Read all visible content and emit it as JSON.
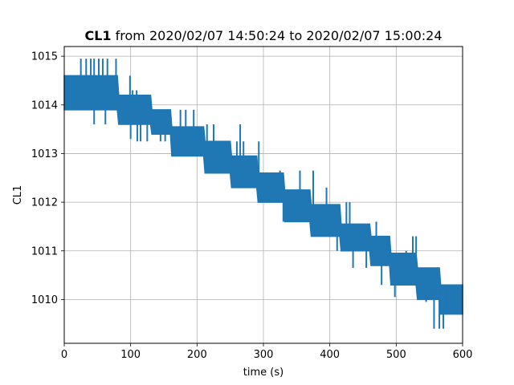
{
  "chart_data": {
    "type": "line",
    "title_bold": "CL1",
    "title_rest": " from 2020/02/07 14:50:24 to 2020/02/07 15:00:24",
    "xlabel": "time (s)",
    "ylabel": "CL1",
    "xlim": [
      0,
      600
    ],
    "ylim": [
      1009.1,
      1015.2
    ],
    "xticks": [
      0,
      100,
      200,
      300,
      400,
      500,
      600
    ],
    "yticks": [
      1010,
      1011,
      1012,
      1013,
      1014,
      1015
    ],
    "grid": true,
    "color": "#1f77b4",
    "series": [
      {
        "envelope": [
          {
            "x": 0,
            "y_low": 1013.9,
            "y_high": 1014.6
          },
          {
            "x": 80,
            "y_low": 1013.9,
            "y_high": 1014.6
          },
          {
            "x": 82,
            "y_low": 1013.6,
            "y_high": 1014.2
          },
          {
            "x": 130,
            "y_low": 1013.6,
            "y_high": 1014.2
          },
          {
            "x": 132,
            "y_low": 1013.4,
            "y_high": 1013.9
          },
          {
            "x": 160,
            "y_low": 1013.4,
            "y_high": 1013.9
          },
          {
            "x": 162,
            "y_low": 1012.95,
            "y_high": 1013.55
          },
          {
            "x": 210,
            "y_low": 1012.95,
            "y_high": 1013.55
          },
          {
            "x": 212,
            "y_low": 1012.6,
            "y_high": 1013.25
          },
          {
            "x": 250,
            "y_low": 1012.6,
            "y_high": 1013.25
          },
          {
            "x": 252,
            "y_low": 1012.3,
            "y_high": 1012.95
          },
          {
            "x": 290,
            "y_low": 1012.3,
            "y_high": 1012.95
          },
          {
            "x": 292,
            "y_low": 1012.0,
            "y_high": 1012.6
          },
          {
            "x": 330,
            "y_low": 1012.0,
            "y_high": 1012.6
          },
          {
            "x": 332,
            "y_low": 1011.6,
            "y_high": 1012.25
          },
          {
            "x": 370,
            "y_low": 1011.6,
            "y_high": 1012.25
          },
          {
            "x": 372,
            "y_low": 1011.3,
            "y_high": 1011.95
          },
          {
            "x": 415,
            "y_low": 1011.3,
            "y_high": 1011.95
          },
          {
            "x": 417,
            "y_low": 1011.0,
            "y_high": 1011.55
          },
          {
            "x": 460,
            "y_low": 1011.0,
            "y_high": 1011.55
          },
          {
            "x": 462,
            "y_low": 1010.7,
            "y_high": 1011.3
          },
          {
            "x": 490,
            "y_low": 1010.7,
            "y_high": 1011.3
          },
          {
            "x": 492,
            "y_low": 1010.3,
            "y_high": 1010.95
          },
          {
            "x": 530,
            "y_low": 1010.3,
            "y_high": 1010.95
          },
          {
            "x": 532,
            "y_low": 1010.0,
            "y_high": 1010.65
          },
          {
            "x": 565,
            "y_low": 1010.0,
            "y_high": 1010.65
          },
          {
            "x": 567,
            "y_low": 1009.7,
            "y_high": 1010.3
          },
          {
            "x": 600,
            "y_low": 1009.7,
            "y_high": 1010.3
          }
        ],
        "spikes": [
          {
            "x": 25,
            "y": 1014.95
          },
          {
            "x": 33,
            "y": 1014.95
          },
          {
            "x": 40,
            "y": 1014.95
          },
          {
            "x": 45,
            "y": 1014.95
          },
          {
            "x": 52,
            "y": 1014.95
          },
          {
            "x": 58,
            "y": 1014.95
          },
          {
            "x": 65,
            "y": 1014.95
          },
          {
            "x": 78,
            "y": 1014.95
          },
          {
            "x": 45,
            "y": 1013.6
          },
          {
            "x": 62,
            "y": 1013.6
          },
          {
            "x": 99,
            "y": 1014.6
          },
          {
            "x": 103,
            "y": 1014.3
          },
          {
            "x": 109,
            "y": 1014.3
          },
          {
            "x": 100,
            "y": 1013.3
          },
          {
            "x": 110,
            "y": 1013.25
          },
          {
            "x": 115,
            "y": 1013.25
          },
          {
            "x": 125,
            "y": 1013.25
          },
          {
            "x": 145,
            "y": 1013.25
          },
          {
            "x": 152,
            "y": 1013.25
          },
          {
            "x": 175,
            "y": 1013.9
          },
          {
            "x": 183,
            "y": 1013.9
          },
          {
            "x": 195,
            "y": 1013.9
          },
          {
            "x": 205,
            "y": 1013.55
          },
          {
            "x": 185,
            "y": 1013.0
          },
          {
            "x": 195,
            "y": 1012.95
          },
          {
            "x": 215,
            "y": 1013.6
          },
          {
            "x": 225,
            "y": 1013.6
          },
          {
            "x": 235,
            "y": 1012.65
          },
          {
            "x": 243,
            "y": 1012.65
          },
          {
            "x": 260,
            "y": 1013.25
          },
          {
            "x": 265,
            "y": 1013.6
          },
          {
            "x": 270,
            "y": 1013.25
          },
          {
            "x": 268,
            "y": 1012.3
          },
          {
            "x": 280,
            "y": 1012.3
          },
          {
            "x": 293,
            "y": 1013.25
          },
          {
            "x": 303,
            "y": 1012.0
          },
          {
            "x": 310,
            "y": 1012.0
          },
          {
            "x": 320,
            "y": 1012.0
          },
          {
            "x": 325,
            "y": 1012.65
          },
          {
            "x": 330,
            "y": 1011.6
          },
          {
            "x": 355,
            "y": 1012.65
          },
          {
            "x": 375,
            "y": 1012.65
          },
          {
            "x": 365,
            "y": 1011.6
          },
          {
            "x": 375,
            "y": 1011.3
          },
          {
            "x": 395,
            "y": 1012.3
          },
          {
            "x": 411,
            "y": 1011.0
          },
          {
            "x": 425,
            "y": 1012.0
          },
          {
            "x": 430,
            "y": 1012.0
          },
          {
            "x": 435,
            "y": 1010.65
          },
          {
            "x": 445,
            "y": 1011.0
          },
          {
            "x": 455,
            "y": 1010.65
          },
          {
            "x": 470,
            "y": 1011.6
          },
          {
            "x": 478,
            "y": 1010.3
          },
          {
            "x": 485,
            "y": 1011.3
          },
          {
            "x": 490,
            "y": 1011.3
          },
          {
            "x": 498,
            "y": 1010.05
          },
          {
            "x": 502,
            "y": 1010.3
          },
          {
            "x": 510,
            "y": 1010.65
          },
          {
            "x": 515,
            "y": 1011.0
          },
          {
            "x": 525,
            "y": 1011.3
          },
          {
            "x": 530,
            "y": 1011.3
          },
          {
            "x": 545,
            "y": 1009.95
          },
          {
            "x": 555,
            "y": 1010.65
          },
          {
            "x": 557,
            "y": 1009.4
          },
          {
            "x": 565,
            "y": 1009.4
          },
          {
            "x": 560,
            "y": 1010.3
          },
          {
            "x": 571,
            "y": 1009.4
          },
          {
            "x": 566,
            "y": 1010.3
          },
          {
            "x": 575,
            "y": 1010.3
          }
        ]
      }
    ]
  }
}
